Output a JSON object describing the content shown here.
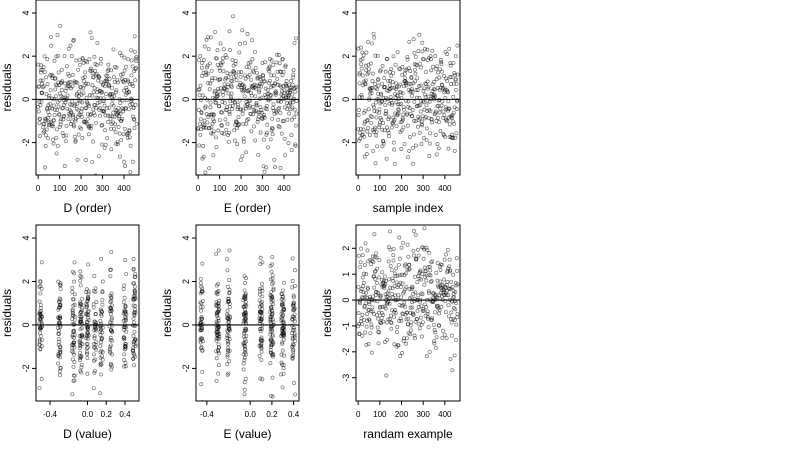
{
  "chart_data": [
    {
      "type": "scatter",
      "xlabel": "D (order)",
      "ylabel": "residuals",
      "xlim": [
        -10,
        470
      ],
      "ylim": [
        -3.5,
        4.6
      ],
      "xticks": [
        0,
        100,
        200,
        300,
        400
      ],
      "yticks": [
        -2,
        0,
        2,
        4
      ],
      "ytick_labels": [
        "-2",
        "0",
        "2",
        "4"
      ],
      "reference_line_y": 0,
      "n_points": 460,
      "seed": 11,
      "x_mode": "index",
      "sd": 1.25
    },
    {
      "type": "scatter",
      "xlabel": "E (order)",
      "ylabel": "residuals",
      "xlim": [
        -10,
        470
      ],
      "ylim": [
        -3.5,
        4.6
      ],
      "xticks": [
        0,
        100,
        200,
        300,
        400
      ],
      "yticks": [
        -2,
        0,
        2,
        4
      ],
      "ytick_labels": [
        "-2",
        "0",
        "2",
        "4"
      ],
      "reference_line_y": 0,
      "n_points": 460,
      "seed": 23,
      "x_mode": "index",
      "sd": 1.25
    },
    {
      "type": "scatter",
      "xlabel": "sample index",
      "ylabel": "residuals",
      "xlim": [
        -10,
        470
      ],
      "ylim": [
        -3.5,
        4.6
      ],
      "xticks": [
        0,
        100,
        200,
        300,
        400
      ],
      "yticks": [
        -2,
        0,
        2,
        4
      ],
      "ytick_labels": [
        "-2",
        "0",
        "2",
        "4"
      ],
      "reference_line_y": 0,
      "n_points": 460,
      "seed": 37,
      "x_mode": "index",
      "sd": 1.25
    },
    {
      "type": "scatter",
      "xlabel": "D (value)",
      "ylabel": "residuals",
      "xlim": [
        -0.55,
        0.55
      ],
      "ylim": [
        -3.5,
        4.6
      ],
      "xticks": [
        -0.4,
        0,
        0.2,
        0.4
      ],
      "xtick_labels": [
        "-0.4",
        "0.0",
        "0.2",
        "0.4"
      ],
      "yticks": [
        -2,
        0,
        2,
        4
      ],
      "ytick_labels": [
        "-2",
        "0",
        "2",
        "4"
      ],
      "reference_line_y": 0,
      "n_points": 460,
      "seed": 41,
      "x_mode": "clustered",
      "x_clusters": [
        -0.5,
        -0.3,
        -0.15,
        -0.07,
        0.0,
        0.08,
        0.15,
        0.25,
        0.4,
        0.5
      ],
      "sd": 1.25
    },
    {
      "type": "scatter",
      "xlabel": "E (value)",
      "ylabel": "residuals",
      "xlim": [
        -0.5,
        0.45
      ],
      "ylim": [
        -3.5,
        4.6
      ],
      "xticks": [
        -0.4,
        0,
        0.2,
        0.4
      ],
      "xtick_labels": [
        "-0.4",
        "0.0",
        "0.2",
        "0.4"
      ],
      "yticks": [
        -2,
        0,
        2,
        4
      ],
      "ytick_labels": [
        "-2",
        "0",
        "2",
        "4"
      ],
      "reference_line_y": 0,
      "n_points": 460,
      "seed": 53,
      "x_mode": "clustered",
      "x_clusters": [
        -0.45,
        -0.3,
        -0.2,
        -0.05,
        0.1,
        0.2,
        0.3,
        0.4
      ],
      "sd": 1.25
    },
    {
      "type": "scatter",
      "xlabel": "randam example",
      "ylabel": "residuals",
      "xlim": [
        -10,
        470
      ],
      "ylim": [
        -3.9,
        2.9
      ],
      "xticks": [
        0,
        100,
        200,
        300,
        400
      ],
      "yticks": [
        -3,
        -2,
        -1,
        0,
        1,
        2
      ],
      "ytick_labels": [
        "-3",
        "-2",
        "-1",
        "0",
        "1",
        "2"
      ],
      "reference_line_y": 0,
      "n_points": 460,
      "seed": 67,
      "x_mode": "index",
      "sd": 1.0
    }
  ]
}
